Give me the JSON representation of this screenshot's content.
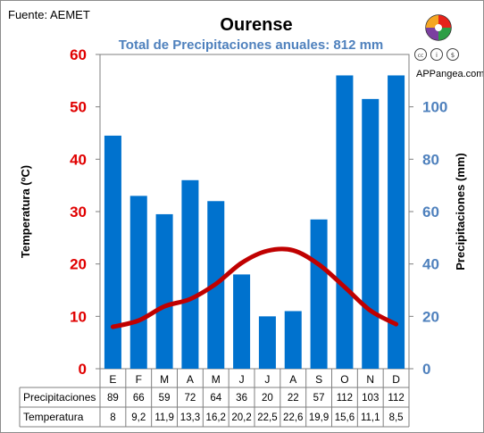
{
  "header": {
    "source": "Fuente: AEMET",
    "title": "Ourense",
    "subtitle": "Total de Precipitaciones anuales: 812 mm",
    "brand": "APPangea.com"
  },
  "chart_data": {
    "type": "bar+line",
    "title": "Ourense",
    "subtitle": "Total de Precipitaciones anuales: 812 mm",
    "categories": [
      "E",
      "F",
      "M",
      "A",
      "M",
      "J",
      "J",
      "A",
      "S",
      "O",
      "N",
      "D"
    ],
    "series": [
      {
        "name": "Precipitaciones",
        "type": "bar",
        "axis": "right",
        "color": "#0072ce",
        "values": [
          89,
          66,
          59,
          72,
          64,
          36,
          20,
          22,
          57,
          112,
          103,
          112
        ],
        "labels": [
          "89",
          "66",
          "59",
          "72",
          "64",
          "36",
          "20",
          "22",
          "57",
          "112",
          "103",
          "112"
        ]
      },
      {
        "name": "Temperatura",
        "type": "line",
        "axis": "left",
        "color": "#c00000",
        "values": [
          8,
          9.2,
          11.9,
          13.3,
          16.2,
          20.2,
          22.5,
          22.6,
          19.9,
          15.6,
          11.1,
          8.5
        ],
        "labels": [
          "8",
          "9,2",
          "11,9",
          "13,3",
          "16,2",
          "20,2",
          "22,5",
          "22,6",
          "19,9",
          "15,6",
          "11,1",
          "8,5"
        ]
      }
    ],
    "y_left": {
      "label": "Temperatura (ºC)",
      "range": [
        0,
        60
      ],
      "ticks": [
        0,
        10,
        20,
        30,
        40,
        50,
        60
      ],
      "color": "#e00000"
    },
    "y_right": {
      "label": "Precipitaciones (mm)",
      "range": [
        0,
        120
      ],
      "ticks": [
        0,
        20,
        40,
        60,
        80,
        100
      ],
      "color": "#4f81bd"
    },
    "grid": false,
    "legend": "none"
  }
}
